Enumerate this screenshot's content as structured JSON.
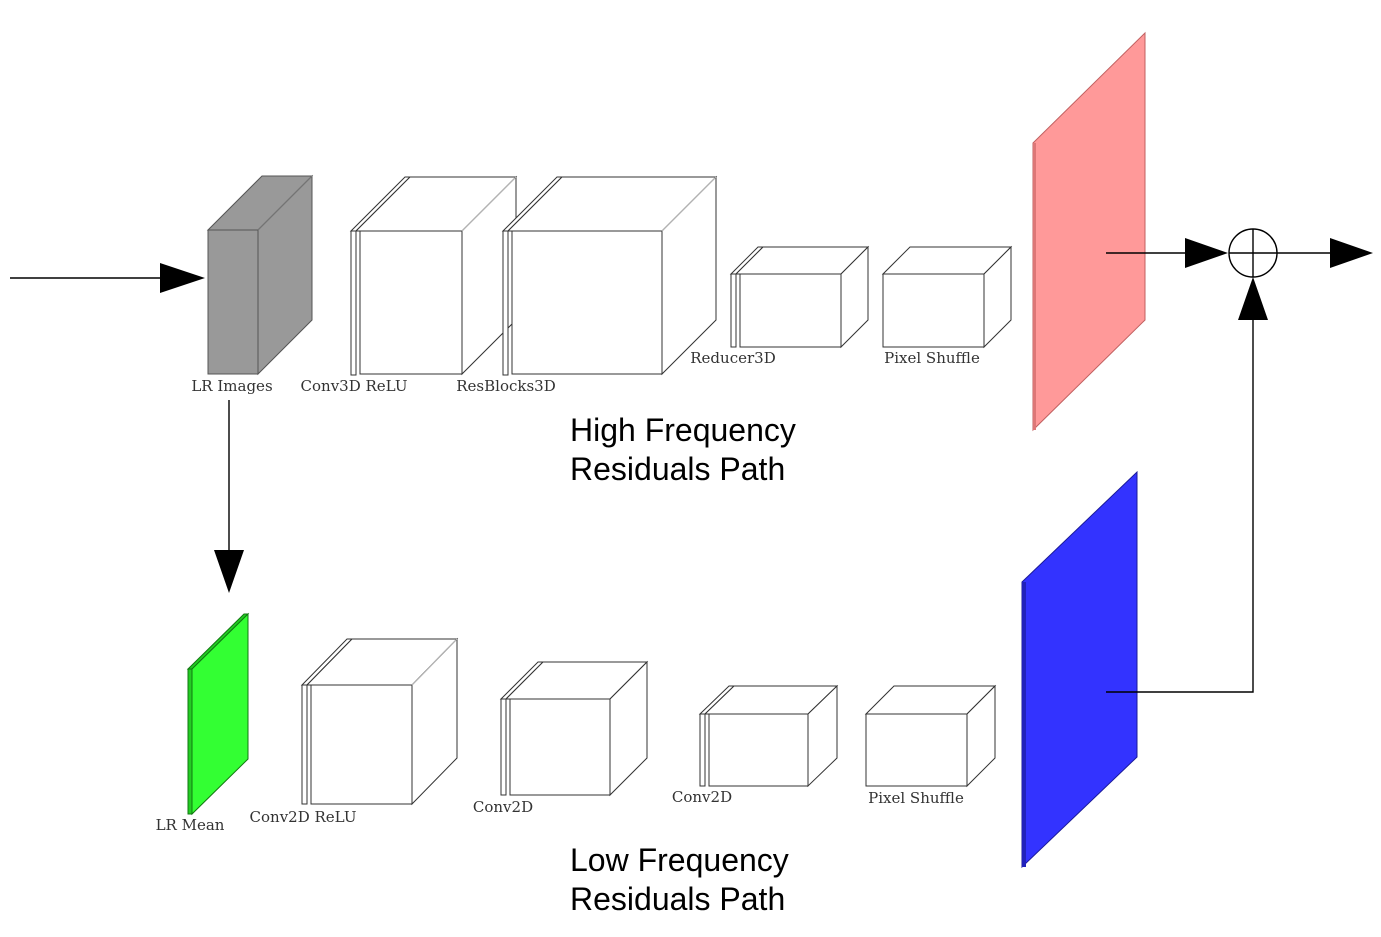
{
  "labels": {
    "lr_images": "LR Images",
    "conv3d_relu": "Conv3D ReLU",
    "resblocks3d": "ResBlocks3D",
    "reducer3d": "Reducer3D",
    "pixel_shuffle_top": "Pixel Shuffle",
    "lr_mean": "LR Mean",
    "conv2d_relu": "Conv2D ReLU",
    "conv2d_a": "Conv2D",
    "conv2d_b": "Conv2D",
    "pixel_shuffle_bottom": "Pixel Shuffle"
  },
  "paths": {
    "high_line1": "High Frequency",
    "high_line2": "Residuals Path",
    "low_line1": "Low Frequency",
    "low_line2": "Residuals Path"
  },
  "colors": {
    "lr_images": "#999999",
    "lr_mean": "#33ff33",
    "high_output": "#ff9999",
    "low_output": "#3333ff",
    "layer_fill": "#ffffff"
  },
  "icons": {
    "sum_node": "circled-plus-icon"
  }
}
